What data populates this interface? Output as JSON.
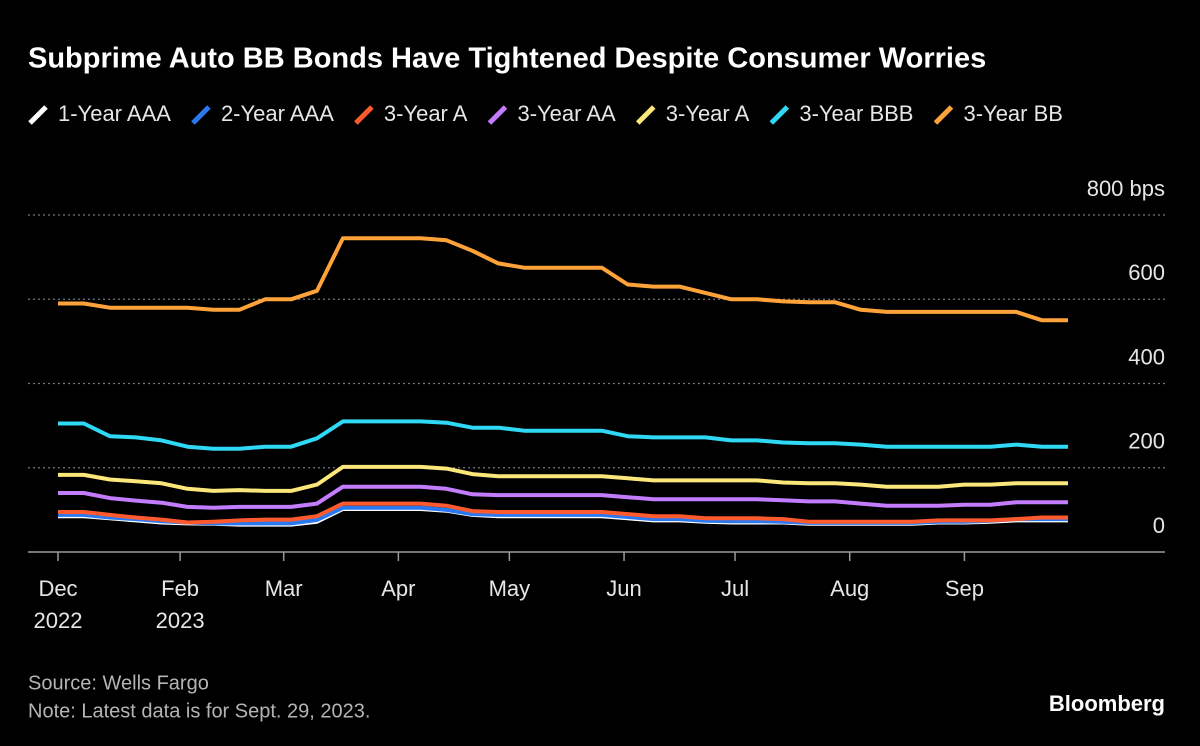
{
  "chart_data": {
    "type": "line",
    "title": "Subprime Auto BB Bonds Have Tightened Despite Consumer Worries",
    "source": "Source: Wells Fargo",
    "note": "Note: Latest data is for Sept. 29, 2023.",
    "brand": "Bloomberg",
    "grid": true,
    "x": [
      "2022-12-30",
      "2023-01-06",
      "2023-01-13",
      "2023-01-20",
      "2023-01-27",
      "2023-02-03",
      "2023-02-10",
      "2023-02-17",
      "2023-02-24",
      "2023-03-03",
      "2023-03-10",
      "2023-03-17",
      "2023-03-24",
      "2023-03-31",
      "2023-04-07",
      "2023-04-14",
      "2023-04-21",
      "2023-04-28",
      "2023-05-05",
      "2023-05-12",
      "2023-05-19",
      "2023-05-26",
      "2023-06-02",
      "2023-06-09",
      "2023-06-16",
      "2023-06-23",
      "2023-06-30",
      "2023-07-07",
      "2023-07-14",
      "2023-07-21",
      "2023-07-28",
      "2023-08-04",
      "2023-08-11",
      "2023-08-18",
      "2023-08-25",
      "2023-09-01",
      "2023-09-08",
      "2023-09-15",
      "2023-09-22",
      "2023-09-29"
    ],
    "xlim": [
      "2022-12-30",
      "2023-09-29"
    ],
    "xticks": [
      {
        "value": "2022-12-30",
        "label": "Dec 2022"
      },
      {
        "value": "2023-02-01",
        "label": "Feb 2023"
      },
      {
        "value": "2023-03-01",
        "label": "Mar"
      },
      {
        "value": "2023-04-01",
        "label": "Apr"
      },
      {
        "value": "2023-05-01",
        "label": "May"
      },
      {
        "value": "2023-06-01",
        "label": "Jun"
      },
      {
        "value": "2023-07-01",
        "label": "Jul"
      },
      {
        "value": "2023-08-01",
        "label": "Aug"
      },
      {
        "value": "2023-09-01",
        "label": "Sep"
      }
    ],
    "ylim": [
      0,
      800
    ],
    "yticks": [
      0,
      200,
      400,
      600,
      {
        "value": 800,
        "label": "800 bps"
      }
    ],
    "series": [
      {
        "name": "1-Year AAA",
        "color": "#ffffff",
        "values": [
          85,
          85,
          80,
          75,
          70,
          68,
          67,
          65,
          65,
          65,
          72,
          102,
          102,
          102,
          102,
          98,
          88,
          85,
          85,
          85,
          85,
          85,
          80,
          75,
          75,
          72,
          70,
          70,
          70,
          67,
          67,
          67,
          67,
          67,
          70,
          70,
          72,
          75,
          75,
          75
        ]
      },
      {
        "name": "2-Year AAA",
        "color": "#2a78f0",
        "values": [
          88,
          88,
          82,
          78,
          73,
          70,
          68,
          68,
          68,
          68,
          76,
          105,
          105,
          105,
          105,
          100,
          90,
          88,
          88,
          88,
          88,
          88,
          83,
          78,
          78,
          74,
          73,
          73,
          72,
          69,
          69,
          69,
          69,
          69,
          72,
          72,
          74,
          78,
          78,
          78
        ]
      },
      {
        "name": "3-Year A",
        "color": "#ff5a2e",
        "values": [
          95,
          95,
          88,
          82,
          77,
          70,
          72,
          75,
          77,
          77,
          85,
          115,
          115,
          115,
          115,
          110,
          97,
          95,
          95,
          95,
          95,
          95,
          90,
          85,
          85,
          80,
          80,
          80,
          78,
          72,
          72,
          72,
          72,
          72,
          75,
          75,
          75,
          78,
          82,
          82
        ]
      },
      {
        "name": "3-Year AA",
        "color": "#c47cff",
        "values": [
          140,
          140,
          128,
          122,
          117,
          107,
          105,
          107,
          107,
          107,
          115,
          155,
          155,
          155,
          155,
          150,
          137,
          135,
          135,
          135,
          135,
          135,
          130,
          125,
          125,
          125,
          125,
          125,
          123,
          120,
          120,
          115,
          110,
          110,
          110,
          112,
          112,
          118,
          118,
          118
        ]
      },
      {
        "name": "3-Year A",
        "color": "#fbe67a",
        "values": [
          183,
          183,
          172,
          168,
          163,
          150,
          145,
          147,
          145,
          145,
          160,
          202,
          202,
          202,
          202,
          198,
          185,
          180,
          180,
          180,
          180,
          180,
          175,
          170,
          170,
          170,
          170,
          170,
          165,
          163,
          163,
          160,
          155,
          155,
          155,
          160,
          160,
          163,
          163,
          163
        ]
      },
      {
        "name": "3-Year BBB",
        "color": "#2fd9f5",
        "values": [
          305,
          305,
          275,
          272,
          265,
          250,
          245,
          245,
          250,
          250,
          270,
          310,
          310,
          310,
          310,
          307,
          295,
          295,
          288,
          288,
          288,
          288,
          275,
          272,
          272,
          272,
          265,
          265,
          260,
          258,
          258,
          255,
          250,
          250,
          250,
          250,
          250,
          255,
          250,
          250
        ]
      },
      {
        "name": "3-Year BB",
        "color": "#ffa23a",
        "values": [
          590,
          590,
          580,
          580,
          580,
          580,
          575,
          575,
          600,
          600,
          620,
          745,
          745,
          745,
          745,
          740,
          715,
          685,
          675,
          675,
          675,
          675,
          635,
          630,
          630,
          615,
          600,
          600,
          595,
          593,
          593,
          575,
          570,
          570,
          570,
          570,
          570,
          570,
          550,
          550
        ]
      }
    ]
  }
}
